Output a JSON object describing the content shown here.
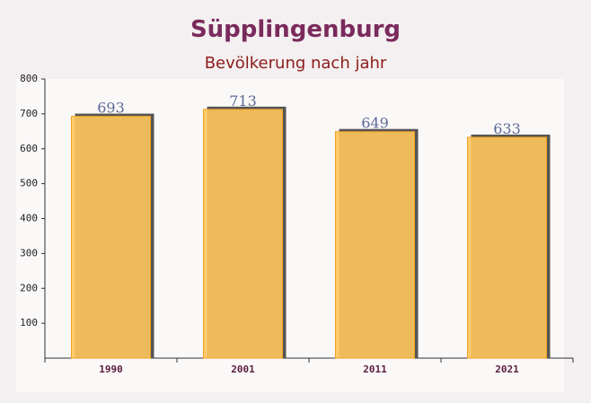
{
  "chart_data": {
    "type": "bar",
    "title": "Süpplingenburg",
    "subtitle": "Bevölkerung nach jahr",
    "categories": [
      "1990",
      "2001",
      "2011",
      "2021"
    ],
    "values": [
      693,
      713,
      649,
      633
    ],
    "color": "#ffc65c",
    "ylim": [
      0,
      800
    ],
    "yticks": [
      100,
      200,
      300,
      400,
      500,
      600,
      700,
      800
    ],
    "grid": false
  }
}
